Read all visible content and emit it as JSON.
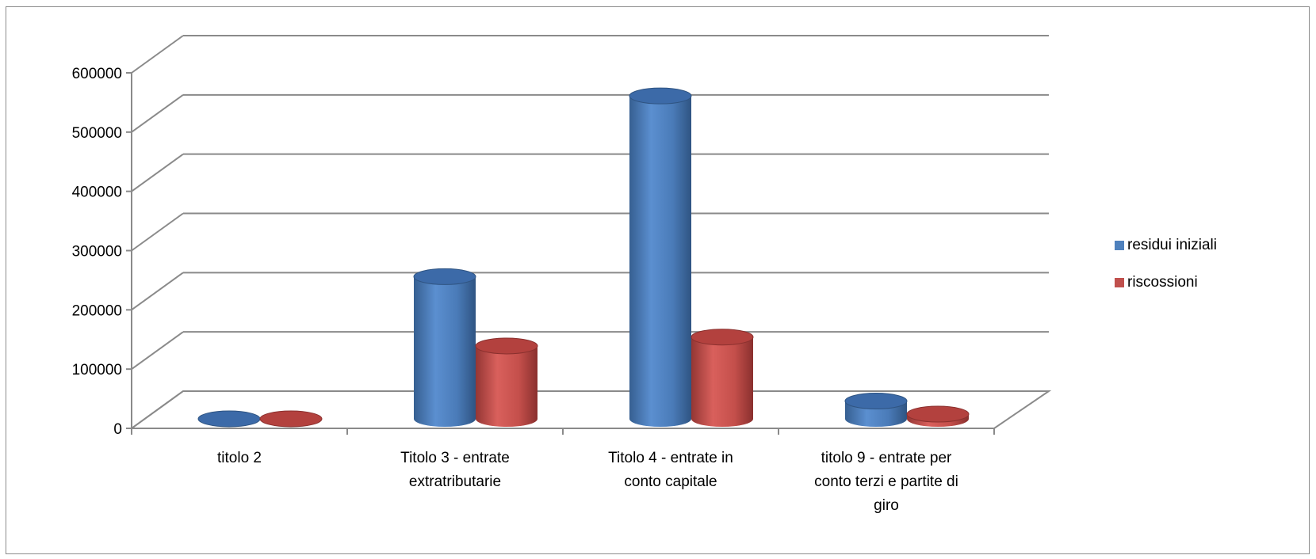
{
  "chart_data": {
    "type": "bar",
    "style": "3d-cylinder",
    "title": "",
    "xlabel": "",
    "ylabel": "",
    "ylim": [
      0,
      600000
    ],
    "yticks": [
      "0",
      "100000",
      "200000",
      "300000",
      "400000",
      "500000",
      "600000"
    ],
    "grid": true,
    "legend_position": "right",
    "categories": [
      [
        "titolo 2"
      ],
      [
        "Titolo 3 - entrate",
        "extratributarie"
      ],
      [
        "Titolo 4 - entrate in",
        "conto capitale"
      ],
      [
        "titolo 9 - entrate per",
        "conto terzi e partite di",
        "giro"
      ]
    ],
    "series": [
      {
        "name": "residui iniziali",
        "color": "#4f81bd",
        "values": [
          0,
          240000,
          545000,
          30000
        ]
      },
      {
        "name": "riscossioni",
        "color": "#c0504d",
        "values": [
          0,
          123000,
          138000,
          8000
        ]
      }
    ]
  }
}
